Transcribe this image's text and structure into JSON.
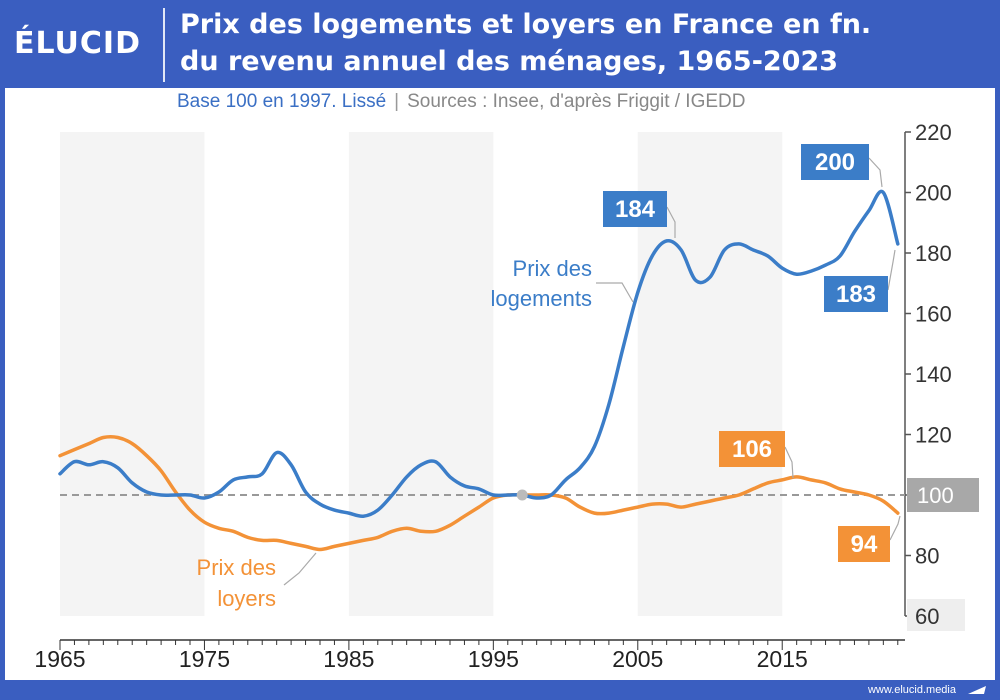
{
  "header": {
    "logo": "ÉLUCID",
    "title_line1": "Prix des logements et loyers en France en fn.",
    "title_line2": "du revenu annuel des ménages, 1965-2023",
    "subtitle_base": "Base 100 en 1997. Lissé",
    "subtitle_separator": "|",
    "subtitle_sources": "Sources : Insee, d'après Friggit / IGEDD"
  },
  "footer": {
    "url": "www.elucid.media"
  },
  "colors": {
    "brand": "#3a5ec0",
    "housing": "#3b7dc8",
    "rents": "#f39237",
    "reference": "#999999"
  },
  "chart_data": {
    "type": "line",
    "xlim": [
      1965,
      2023.5
    ],
    "ylim": [
      60,
      220
    ],
    "x_ticks": [
      1965,
      1975,
      1985,
      1995,
      2005,
      2015
    ],
    "y_ticks": [
      60,
      80,
      100,
      120,
      140,
      160,
      180,
      200,
      220
    ],
    "reference_line": 100,
    "reference_label": "100",
    "base_year": 1997,
    "series": [
      {
        "name": "Prix des logements",
        "label_lines": [
          "Prix des",
          "logements"
        ],
        "color": "#3b7dc8",
        "points": [
          [
            1965,
            107
          ],
          [
            1966,
            111
          ],
          [
            1967,
            110
          ],
          [
            1968,
            111
          ],
          [
            1969,
            109
          ],
          [
            1970,
            104
          ],
          [
            1971,
            101
          ],
          [
            1972,
            100
          ],
          [
            1973,
            100
          ],
          [
            1974,
            100
          ],
          [
            1975,
            99
          ],
          [
            1976,
            101
          ],
          [
            1977,
            105
          ],
          [
            1978,
            106
          ],
          [
            1979,
            107
          ],
          [
            1980,
            114
          ],
          [
            1981,
            110
          ],
          [
            1982,
            101
          ],
          [
            1983,
            97
          ],
          [
            1984,
            95
          ],
          [
            1985,
            94
          ],
          [
            1986,
            93
          ],
          [
            1987,
            95
          ],
          [
            1988,
            100
          ],
          [
            1989,
            106
          ],
          [
            1990,
            110
          ],
          [
            1991,
            111
          ],
          [
            1992,
            106
          ],
          [
            1993,
            103
          ],
          [
            1994,
            102
          ],
          [
            1995,
            100
          ],
          [
            1996,
            100
          ],
          [
            1997,
            100
          ],
          [
            1998,
            99
          ],
          [
            1999,
            100
          ],
          [
            2000,
            105
          ],
          [
            2001,
            109
          ],
          [
            2002,
            116
          ],
          [
            2003,
            130
          ],
          [
            2004,
            149
          ],
          [
            2005,
            167
          ],
          [
            2006,
            179
          ],
          [
            2007,
            184
          ],
          [
            2008,
            181
          ],
          [
            2009,
            171
          ],
          [
            2010,
            172
          ],
          [
            2011,
            181
          ],
          [
            2012,
            183
          ],
          [
            2013,
            181
          ],
          [
            2014,
            179
          ],
          [
            2015,
            175
          ],
          [
            2016,
            173
          ],
          [
            2017,
            174
          ],
          [
            2018,
            176
          ],
          [
            2019,
            179
          ],
          [
            2020,
            187
          ],
          [
            2021,
            194
          ],
          [
            2022,
            200
          ],
          [
            2023,
            183
          ]
        ]
      },
      {
        "name": "Prix des loyers",
        "label_lines": [
          "Prix des",
          "loyers"
        ],
        "color": "#f39237",
        "points": [
          [
            1965,
            113
          ],
          [
            1966,
            115
          ],
          [
            1967,
            117
          ],
          [
            1968,
            119
          ],
          [
            1969,
            119
          ],
          [
            1970,
            117
          ],
          [
            1971,
            113
          ],
          [
            1972,
            108
          ],
          [
            1973,
            101
          ],
          [
            1974,
            95
          ],
          [
            1975,
            91
          ],
          [
            1976,
            89
          ],
          [
            1977,
            88
          ],
          [
            1978,
            86
          ],
          [
            1979,
            85
          ],
          [
            1980,
            85
          ],
          [
            1981,
            84
          ],
          [
            1982,
            83
          ],
          [
            1983,
            82
          ],
          [
            1984,
            83
          ],
          [
            1985,
            84
          ],
          [
            1986,
            85
          ],
          [
            1987,
            86
          ],
          [
            1988,
            88
          ],
          [
            1989,
            89
          ],
          [
            1990,
            88
          ],
          [
            1991,
            88
          ],
          [
            1992,
            90
          ],
          [
            1993,
            93
          ],
          [
            1994,
            96
          ],
          [
            1995,
            99
          ],
          [
            1996,
            100
          ],
          [
            1997,
            100
          ],
          [
            1998,
            100
          ],
          [
            1999,
            100
          ],
          [
            2000,
            99
          ],
          [
            2001,
            96
          ],
          [
            2002,
            94
          ],
          [
            2003,
            94
          ],
          [
            2004,
            95
          ],
          [
            2005,
            96
          ],
          [
            2006,
            97
          ],
          [
            2007,
            97
          ],
          [
            2008,
            96
          ],
          [
            2009,
            97
          ],
          [
            2010,
            98
          ],
          [
            2011,
            99
          ],
          [
            2012,
            100
          ],
          [
            2013,
            102
          ],
          [
            2014,
            104
          ],
          [
            2015,
            105
          ],
          [
            2016,
            106
          ],
          [
            2017,
            105
          ],
          [
            2018,
            104
          ],
          [
            2019,
            102
          ],
          [
            2020,
            101
          ],
          [
            2021,
            100
          ],
          [
            2022,
            98
          ],
          [
            2023,
            94
          ]
        ]
      }
    ],
    "annotations": [
      {
        "text": "184",
        "series": 0,
        "year": 2007,
        "value": 184
      },
      {
        "text": "200",
        "series": 0,
        "year": 2022,
        "value": 200
      },
      {
        "text": "183",
        "series": 0,
        "year": 2023,
        "value": 183
      },
      {
        "text": "106",
        "series": 1,
        "year": 2016,
        "value": 106
      },
      {
        "text": "94",
        "series": 1,
        "year": 2023,
        "value": 94
      }
    ]
  }
}
